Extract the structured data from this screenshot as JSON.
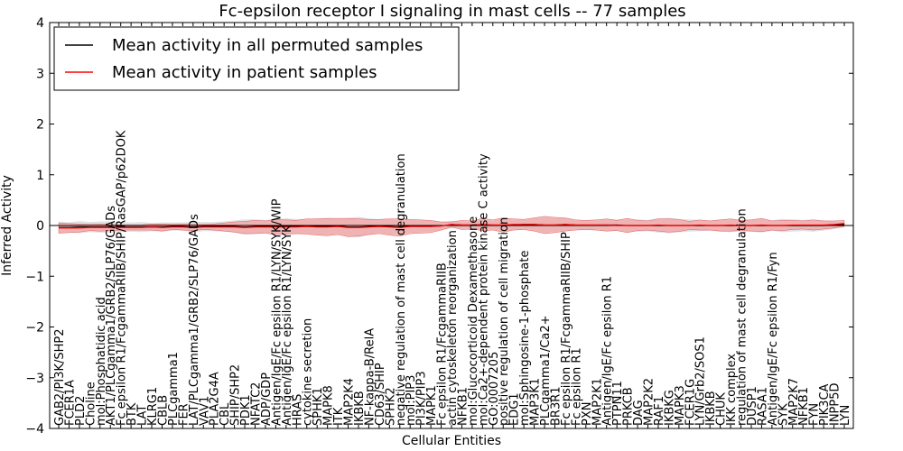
{
  "chart_data": {
    "type": "line",
    "title": "Fc-epsilon receptor I signaling in mast cells -- 77 samples",
    "xlabel": "Cellular Entities",
    "ylabel": "Inferred Activity",
    "ylim": [
      -4,
      4
    ],
    "yticks": [
      -4,
      -3,
      -2,
      -1,
      0,
      1,
      2,
      3,
      4
    ],
    "ytick_labels": [
      "−4",
      "−3",
      "−2",
      "−1",
      "0",
      "1",
      "2",
      "3",
      "4"
    ],
    "grid": false,
    "legend_position": "top-left",
    "colors": {
      "permuted": "#000000",
      "patient": "#ff0000",
      "patient_band": "#f4a3a3",
      "permuted_band": "#c8c8d2"
    },
    "categories": [
      "GAB2/PI3K/SHP2",
      "FCER1A",
      "PLD2",
      "Choline",
      "mol:Phosphatidic acid",
      "AKT1/PLCgamma1/GRB2/SLP76/GADs",
      "Fc epsilon R1/FcgammaRIIB/SHIP/RasGAP/p62DOK",
      "BTK",
      "LAT",
      "KLRG1",
      "CBLB",
      "PLCgamma1",
      "FER",
      "LAT/PLCgamma1/GRB2/SLP76/GADs",
      "VAV1",
      "PLA2G4A",
      "CBL",
      "SHIP/SHP2",
      "PDK1",
      "NFATC2",
      "ADP/GDP",
      "Antigen/IgE/Fc epsilon R1/LYN/SYK/WIP",
      "Antigen/IgE/Fc epsilon R1/LYN/SYK",
      "HRAS",
      "cytokine secretion",
      "SPHK1",
      "MAPK8",
      "ITK",
      "MAP2K4",
      "IKBKB",
      "NF-kappa-B/RelA",
      "CD63/SHIP",
      "SPHK2",
      "negative regulation of mast cell degranulation",
      "mol:PIP3",
      "PI3K/PIP3",
      "MAPK1",
      "Fc epsilon R1/FcgammaRIIB",
      "actin cytoskeleton reorganization",
      "NFKB1",
      "mol:Glucocorticoid Dexamethasone",
      "mol:Ca2+-dependent protein kinase C activity",
      "GO:0007205",
      "positive regulation of cell migration",
      "EDG1",
      "mol:Sphingosine-1-phosphate",
      "MAP3K1",
      "PLCgamma1/Ca2+",
      "BR3R1",
      "Fc epsilon R1/FcgammaRIIB/SHIP",
      "Fc epsilon R1",
      "PXN",
      "MAP2K1",
      "Antigen/IgE/Fc epsilon R1",
      "PTPN11",
      "PRKCB",
      "DAG",
      "MAP2K2",
      "RAF1",
      "IKBKG",
      "MAPK3",
      "FCER1G",
      "LYN/Grb2/SOS1",
      "IKBKB",
      "CHUK",
      "IKK complex",
      "regulation of mast cell degranulation",
      "DUSP1",
      "RASA1",
      "Antigen/IgE/Fc epsilon R1/Fyn",
      "SYK",
      "MAP2K7",
      "NFKB1",
      "FYN",
      "PIK3CA",
      "INPP5D",
      "LYN"
    ],
    "series": [
      {
        "name": "Mean activity in all permuted samples",
        "color": "#000000",
        "values": [
          -0.04,
          -0.04,
          -0.03,
          -0.03,
          -0.03,
          -0.03,
          -0.03,
          -0.03,
          -0.03,
          -0.03,
          -0.03,
          -0.02,
          -0.02,
          -0.03,
          -0.02,
          -0.02,
          -0.02,
          -0.02,
          -0.03,
          -0.02,
          -0.02,
          -0.02,
          -0.02,
          -0.02,
          -0.01,
          -0.02,
          -0.02,
          -0.01,
          -0.03,
          -0.03,
          -0.02,
          -0.01,
          -0.02,
          -0.03,
          -0.01,
          -0.01,
          -0.01,
          -0.01,
          0.02,
          0.01,
          0.01,
          0.01,
          0.01,
          0.01,
          0.01,
          0.02,
          0.02,
          0.01,
          0.01,
          0.02,
          0.01,
          0.01,
          0.01,
          0.01,
          0.01,
          0.0,
          0.0,
          0.0,
          0.0,
          0.0,
          0.0,
          0.0,
          0.0,
          0.0,
          0.0,
          0.0,
          0.0,
          0.0,
          0.0,
          0.0,
          0.0,
          0.0,
          0.0,
          0.0,
          0.0,
          0.01,
          0.02
        ],
        "band": [
          0.12,
          0.1,
          0.12,
          0.1,
          0.11,
          0.11,
          0.1,
          0.09,
          0.1,
          0.08,
          0.09,
          0.08,
          0.08,
          0.1,
          0.09,
          0.09,
          0.1,
          0.12,
          0.15,
          0.14,
          0.13,
          0.14,
          0.16,
          0.15,
          0.14,
          0.16,
          0.17,
          0.15,
          0.18,
          0.2,
          0.16,
          0.13,
          0.15,
          0.14,
          0.12,
          0.12,
          0.1,
          0.08,
          0.07,
          0.06,
          0.06,
          0.1,
          0.08,
          0.12,
          0.1,
          0.09,
          0.12,
          0.14,
          0.13,
          0.12,
          0.09,
          0.1,
          0.1,
          0.12,
          0.11,
          0.13,
          0.12,
          0.11,
          0.14,
          0.15,
          0.13,
          0.12,
          0.11,
          0.1,
          0.12,
          0.13,
          0.11,
          0.12,
          0.14,
          0.1,
          0.13,
          0.12,
          0.11,
          0.12,
          0.1,
          0.08,
          0.05
        ]
      },
      {
        "name": "Mean activity in patient samples",
        "color": "#ff0000",
        "values": [
          -0.05,
          -0.05,
          -0.05,
          -0.04,
          -0.04,
          -0.04,
          -0.04,
          -0.04,
          -0.04,
          -0.03,
          -0.04,
          -0.03,
          -0.03,
          -0.04,
          -0.03,
          -0.03,
          -0.03,
          -0.03,
          -0.04,
          -0.03,
          -0.03,
          -0.03,
          -0.03,
          -0.03,
          -0.02,
          -0.03,
          -0.03,
          -0.02,
          -0.04,
          -0.04,
          -0.03,
          -0.02,
          -0.03,
          -0.04,
          -0.02,
          -0.02,
          -0.02,
          -0.01,
          0.02,
          0.01,
          0.01,
          0.02,
          0.01,
          0.01,
          0.02,
          0.02,
          0.02,
          0.01,
          0.01,
          0.02,
          0.01,
          0.01,
          0.01,
          0.01,
          0.0,
          0.0,
          0.0,
          0.0,
          0.01,
          0.0,
          0.0,
          0.0,
          0.01,
          0.0,
          0.0,
          0.01,
          0.0,
          0.0,
          0.01,
          0.0,
          0.0,
          0.01,
          0.01,
          0.01,
          0.01,
          0.02,
          0.04
        ],
        "band": [
          0.1,
          0.09,
          0.08,
          0.06,
          0.07,
          0.06,
          0.05,
          0.05,
          0.05,
          0.06,
          0.07,
          0.05,
          0.06,
          0.06,
          0.05,
          0.06,
          0.08,
          0.1,
          0.12,
          0.13,
          0.12,
          0.15,
          0.14,
          0.13,
          0.15,
          0.16,
          0.17,
          0.16,
          0.18,
          0.17,
          0.15,
          0.14,
          0.16,
          0.17,
          0.14,
          0.13,
          0.12,
          0.08,
          0.05,
          0.09,
          0.08,
          0.12,
          0.1,
          0.14,
          0.11,
          0.1,
          0.13,
          0.17,
          0.15,
          0.13,
          0.1,
          0.09,
          0.1,
          0.12,
          0.1,
          0.14,
          0.1,
          0.09,
          0.12,
          0.13,
          0.12,
          0.08,
          0.1,
          0.09,
          0.11,
          0.12,
          0.1,
          0.11,
          0.13,
          0.09,
          0.1,
          0.09,
          0.08,
          0.1,
          0.08,
          0.07,
          0.06
        ]
      }
    ]
  }
}
